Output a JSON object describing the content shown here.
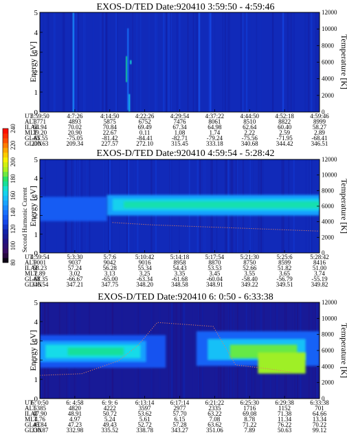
{
  "colorbar": {
    "label": "Second Harmonic Current",
    "ticks": [
      "80",
      "100",
      "120",
      "140",
      "160",
      "180",
      "200",
      "220",
      "240"
    ],
    "colors": [
      "#000000",
      "#3a0a5e",
      "#23107e",
      "#1020a8",
      "#1448ec",
      "#1a78ff",
      "#19b0ff",
      "#14e0e6",
      "#18e070",
      "#a8f020",
      "#f8f000",
      "#ffa000",
      "#ff4000",
      "#ff0000"
    ]
  },
  "chart_data": [
    {
      "type": "heatmap",
      "title": "EXOS-D/TED   Date:920410   3:59:50 - 4:59:46",
      "ylabel": "Energy [eV]",
      "y2label": "Temperature [K]",
      "ylim": [
        0,
        5
      ],
      "y2lim": [
        0,
        12000
      ],
      "yticks": [
        "0",
        "1",
        "2",
        "3",
        "4",
        "5"
      ],
      "y2ticks": [
        "0",
        "2000",
        "4000",
        "6000",
        "8000",
        "10000",
        "12000"
      ],
      "row_labels": [
        "UT",
        "ALT",
        "ILAT",
        "MLT",
        "GLAT",
        "GLON"
      ],
      "columns": [
        [
          "3:59:50",
          "3771",
          "64.94",
          "19.20",
          "-65.55",
          "200.63"
        ],
        [
          "4:7:26",
          "4893",
          "70.02",
          "20.90",
          "-75.05",
          "209.34"
        ],
        [
          "4:14:50",
          "5875",
          "70.84",
          "22.67",
          "-81.42",
          "227.57"
        ],
        [
          "4:22:26",
          "6752",
          "69.49",
          "0.11",
          "-84.41",
          "272.10"
        ],
        [
          "4:29:54",
          "7476",
          "67.34",
          "1.08",
          "-82.71",
          "315.45"
        ],
        [
          "4:37:22",
          "8061",
          "64.98",
          "1.74",
          "-79.24",
          "333.18"
        ],
        [
          "4:44:50",
          "8510",
          "62.64",
          "2.22",
          "-75.56",
          "340.68"
        ],
        [
          "4:52:18",
          "8822",
          "60.40",
          "2.59",
          "-71.95",
          "344.42"
        ],
        [
          "4:59:46",
          "8999",
          "58.27",
          "2.89",
          "-68.41",
          "346.51"
        ]
      ],
      "background_level": 120,
      "features": [
        {
          "x": 0.12,
          "y0": 0.0,
          "y1": 5.0,
          "level": 148
        },
        {
          "x": 0.31,
          "y0": 1.5,
          "y1": 2.8,
          "level": 175
        },
        {
          "x": 0.315,
          "y0": 0.1,
          "y1": 4.2,
          "level": 140
        },
        {
          "x": 0.32,
          "y0": 0.0,
          "y1": 0.9,
          "level": 160
        },
        {
          "x": 0.325,
          "y0": 2.4,
          "y1": 2.6,
          "level": 168
        },
        {
          "x": 0.57,
          "y0": 0.0,
          "y1": 5.0,
          "level": 132
        },
        {
          "x": 0.61,
          "y0": 0.0,
          "y1": 5.0,
          "level": 130
        },
        {
          "x": 0.87,
          "y0": 0.0,
          "y1": 5.0,
          "level": 128
        }
      ]
    },
    {
      "type": "heatmap",
      "title": "EXOS-D/TED   Date:920410   4:59:54 - 5:28:42",
      "ylabel": "Energy [eV]",
      "y2label": "Temperature [K]",
      "ylim": [
        0,
        5
      ],
      "y2lim": [
        0,
        12000
      ],
      "yticks": [
        "0",
        "1",
        "2",
        "3",
        "4",
        "5"
      ],
      "y2ticks": [
        "0",
        "2000",
        "4000",
        "6000",
        "8000",
        "10000",
        "12000"
      ],
      "row_labels": [
        "UT",
        "ALT",
        "ILAT",
        "MLT",
        "GLAT",
        "GLON"
      ],
      "columns": [
        [
          "4:59:54",
          "9001",
          "58.23",
          "2.89",
          "-68.35",
          "346.54"
        ],
        [
          "5:3:30",
          "9037",
          "57.24",
          "3.02",
          "-66.67",
          "347.21"
        ],
        [
          "5:7:6",
          "9042",
          "56.28",
          "3.13",
          "-65.00",
          "347.75"
        ],
        [
          "5:10:42",
          "9016",
          "55.34",
          "3.25",
          "-63.34",
          "348.20"
        ],
        [
          "5:14:18",
          "8958",
          "54.43",
          "3.35",
          "-61.68",
          "348.58"
        ],
        [
          "5:17:54",
          "8870",
          "53.53",
          "3.45",
          "-60.04",
          "348.91"
        ],
        [
          "5:21:30",
          "8750",
          "52.66",
          "3.55",
          "-58.40",
          "349.22"
        ],
        [
          "5:25:6",
          "8599",
          "51.82",
          "3.65",
          "-56.79",
          "349.51"
        ],
        [
          "5:28:42",
          "8416",
          "51.00",
          "3.74",
          "-55.19",
          "349.82"
        ]
      ],
      "background_level": 120,
      "bands": [
        {
          "x0": 0.0,
          "x1": 0.24,
          "y0": 1.7,
          "y1": 3.0,
          "level": 134
        },
        {
          "x0": 0.24,
          "x1": 1.0,
          "y0": 2.0,
          "y1": 3.1,
          "level": 150
        },
        {
          "x0": 0.26,
          "x1": 1.0,
          "y0": 2.25,
          "y1": 2.9,
          "level": 162
        },
        {
          "x0": 0.3,
          "x1": 1.0,
          "y0": 2.4,
          "y1": 2.75,
          "level": 172
        }
      ],
      "temperature_trace": [
        {
          "x": 0.26,
          "t": 3900
        },
        {
          "x": 0.4,
          "t": 3600
        },
        {
          "x": 0.55,
          "t": 3400
        },
        {
          "x": 0.7,
          "t": 3200
        },
        {
          "x": 0.85,
          "t": 3000
        },
        {
          "x": 1.0,
          "t": 2800
        }
      ]
    },
    {
      "type": "heatmap",
      "title": "EXOS-D/TED   Date:920410   6: 0:50 - 6:33:38",
      "ylabel": "Energy [eV]",
      "y2label": "Temperature [K]",
      "ylim": [
        0,
        5
      ],
      "y2lim": [
        0,
        12000
      ],
      "yticks": [
        "0",
        "1",
        "2",
        "3",
        "4",
        "5"
      ],
      "y2ticks": [
        "0",
        "2000",
        "4000",
        "6000",
        "8000",
        "10000",
        "12000"
      ],
      "row_labels": [
        "UT",
        "ALT",
        "ILAT",
        "MLT",
        "GLAT",
        "GLON"
      ],
      "columns": [
        [
          "6: 0:50",
          "5385",
          "47.90",
          "4.76",
          "45.84",
          "330.87"
        ],
        [
          "6: 4:58",
          "4820",
          "48.91",
          "4.97",
          "47.23",
          "332.98"
        ],
        [
          "6: 9: 6",
          "4222",
          "50.72",
          "5.24",
          "49.43",
          "335.52"
        ],
        [
          "6:13:14",
          "3597",
          "53.62",
          "5.61",
          "52.72",
          "338.78"
        ],
        [
          "6:17:14",
          "2977",
          "57.70",
          "6.15",
          "57.28",
          "343.27"
        ],
        [
          "6:21:22",
          "2335",
          "63.22",
          "7.08",
          "63.62",
          "351.06"
        ],
        [
          "6:25:30",
          "1716",
          "69.08",
          "8.78",
          "71.22",
          "7.89"
        ],
        [
          "6:29:38",
          "1152",
          "71.38",
          "11.34",
          "76.22",
          "50.63"
        ],
        [
          "6:33:38",
          "701",
          "64.66",
          "13.34",
          "70.22",
          "99.12"
        ]
      ],
      "background_level": 112,
      "bands": [
        {
          "x0": 0.0,
          "x1": 0.45,
          "y0": 1.6,
          "y1": 3.3,
          "level": 132
        },
        {
          "x0": 0.0,
          "x1": 0.38,
          "y0": 1.9,
          "y1": 3.0,
          "level": 150
        },
        {
          "x0": 0.02,
          "x1": 0.36,
          "y0": 2.1,
          "y1": 2.8,
          "level": 165
        },
        {
          "x0": 0.1,
          "x1": 0.3,
          "y0": 2.25,
          "y1": 2.65,
          "level": 174
        },
        {
          "x0": 0.56,
          "x1": 1.0,
          "y0": 1.7,
          "y1": 3.5,
          "level": 136
        },
        {
          "x0": 0.6,
          "x1": 0.95,
          "y0": 2.0,
          "y1": 3.1,
          "level": 158
        },
        {
          "x0": 0.68,
          "x1": 0.92,
          "y0": 2.1,
          "y1": 2.8,
          "level": 185
        },
        {
          "x0": 0.78,
          "x1": 0.95,
          "y0": 1.3,
          "y1": 2.4,
          "level": 190
        }
      ],
      "temperature_trace": [
        {
          "x": 0.0,
          "t": 2900
        },
        {
          "x": 0.15,
          "t": 3100
        },
        {
          "x": 0.28,
          "t": 4700
        },
        {
          "x": 0.35,
          "t": 6600
        },
        {
          "x": 0.42,
          "t": 9500
        },
        {
          "x": 0.62,
          "t": 9000
        },
        {
          "x": 0.7,
          "t": 4200
        },
        {
          "x": 0.82,
          "t": 3700
        },
        {
          "x": 0.9,
          "t": 3300
        }
      ]
    }
  ]
}
